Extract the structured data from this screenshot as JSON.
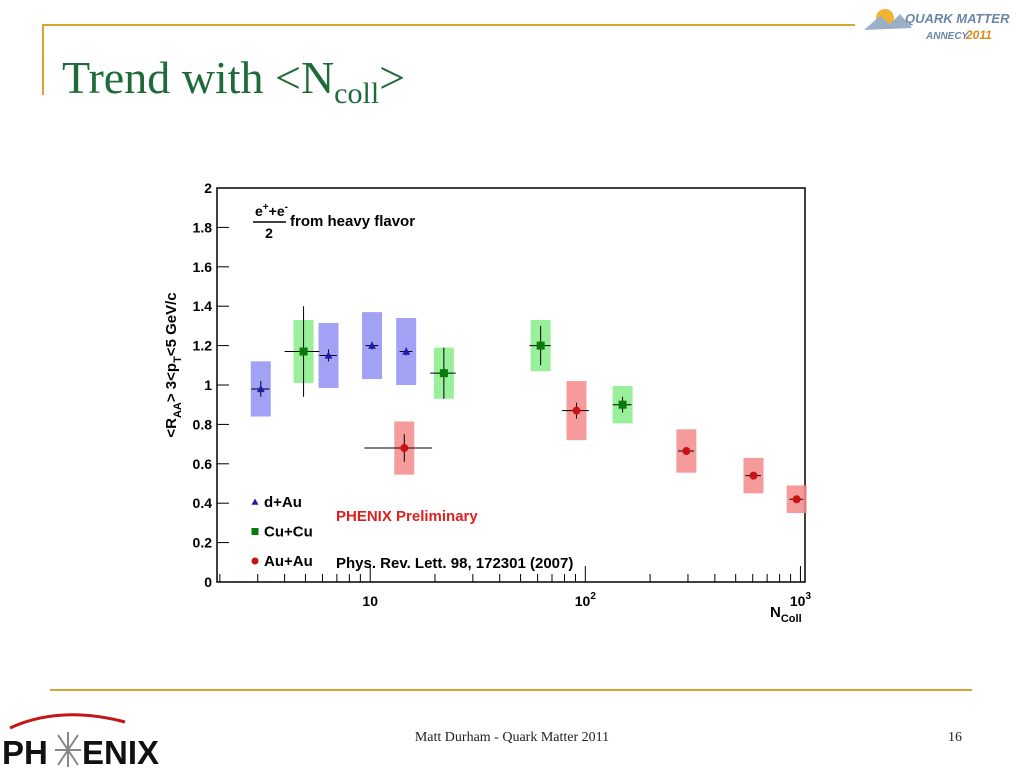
{
  "slide": {
    "title_parts": [
      "Trend with <N",
      "coll",
      ">"
    ],
    "footer": "Matt Durham - Quark Matter 2011",
    "page": "16",
    "logo_top": [
      "QUARK MATTER",
      "ANNECY",
      "2011"
    ],
    "logo_bottom": [
      "PH",
      "ENIX"
    ]
  },
  "chart_data": {
    "type": "scatter",
    "log_x": true,
    "ylabel_parts": [
      "<R",
      "AA",
      "> 3<p",
      "T",
      "<5 GeV/c"
    ],
    "xlabel_parts": [
      "N",
      "Coll"
    ],
    "annotation_formula": [
      "e",
      "+",
      "+e",
      "-",
      "2"
    ],
    "annotation_text": "from heavy flavor",
    "preliminary": "PHENIX Preliminary",
    "reference": "Phys. Rev. Lett. 98, 172301 (2007)",
    "xlim": [
      1.94,
      1050
    ],
    "ylim": [
      0,
      2
    ],
    "xticks": [
      {
        "value": 10,
        "label": "10"
      },
      {
        "value": 100,
        "label": "10",
        "exponent": "2"
      },
      {
        "value": 1000,
        "label": "10",
        "exponent": "3"
      }
    ],
    "xminor_ticks": [
      2,
      3,
      4,
      5,
      6,
      7,
      8,
      9,
      20,
      30,
      40,
      50,
      60,
      70,
      80,
      90,
      200,
      300,
      400,
      500,
      600,
      700,
      800,
      900
    ],
    "yticks": [
      0,
      0.2,
      0.4,
      0.6,
      0.8,
      1,
      1.2,
      1.4,
      1.6,
      1.8,
      2
    ],
    "series": [
      {
        "name": "d+Au",
        "marker": "triangle",
        "color": "#1c1ca8",
        "box_color": "#9090f4",
        "x": [
          3.1,
          6.4,
          10.2,
          14.7
        ],
        "values": [
          0.98,
          1.15,
          1.2,
          1.17
        ],
        "errors": [
          0.04,
          0.03,
          0.02,
          0.02
        ],
        "sys": [
          0.14,
          0.165,
          0.17,
          0.17
        ],
        "xerr": [
          0.3,
          0.6,
          0.7,
          1.0
        ]
      },
      {
        "name": "Cu+Cu",
        "marker": "square",
        "color": "#0a7a0a",
        "box_color": "#88ec88",
        "x": [
          4.9,
          22,
          62,
          149
        ],
        "values": [
          1.17,
          1.06,
          1.2,
          0.9
        ],
        "errors": [
          0.23,
          0.13,
          0.1,
          0.04
        ],
        "sys": [
          0.16,
          0.13,
          0.13,
          0.095
        ],
        "xerr": [
          0.9,
          3,
          7,
          15
        ]
      },
      {
        "name": "Au+Au",
        "marker": "circle",
        "color": "#cc1111",
        "box_color": "#f48a8a",
        "x": [
          14.4,
          91,
          295,
          605,
          960
        ],
        "values": [
          0.68,
          0.87,
          0.665,
          0.54,
          0.42
        ],
        "errors": [
          0.07,
          0.04,
          0.015,
          0.015,
          0.015
        ],
        "sys": [
          0.135,
          0.15,
          0.11,
          0.09,
          0.07
        ],
        "xerr": [
          5,
          13,
          25,
          50,
          70
        ]
      }
    ]
  }
}
